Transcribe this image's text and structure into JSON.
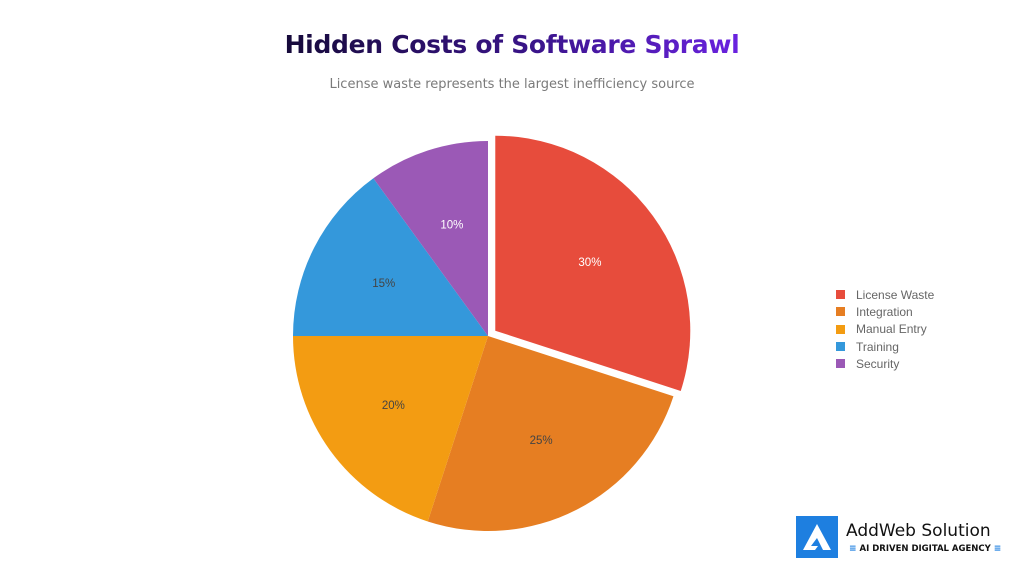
{
  "header": {
    "title": "Hidden Costs of Software Sprawl",
    "subtitle": "License waste represents the largest inefficiency source"
  },
  "chart_data": {
    "type": "pie",
    "title": "Hidden Costs of Software Sprawl",
    "subtitle": "License waste represents the largest inefficiency source",
    "categories": [
      "License Waste",
      "Integration",
      "Manual Entry",
      "Training",
      "Security"
    ],
    "values": [
      30,
      25,
      20,
      15,
      10
    ],
    "unit": "%",
    "colors": [
      "#e74c3c",
      "#e67e22",
      "#f39c12",
      "#3498db",
      "#9b59b6"
    ],
    "exploded": [
      "License Waste"
    ],
    "legend_position": "right",
    "data_labels": [
      "30%",
      "25%",
      "20%",
      "15%",
      "10%"
    ]
  },
  "legend": {
    "items": [
      {
        "label": "License Waste",
        "color": "#e74c3c"
      },
      {
        "label": "Integration",
        "color": "#e67e22"
      },
      {
        "label": "Manual Entry",
        "color": "#f39c12"
      },
      {
        "label": "Training",
        "color": "#3498db"
      },
      {
        "label": "Security",
        "color": "#9b59b6"
      }
    ]
  },
  "brand": {
    "name": "AddWeb Solution",
    "tagline": "AI DRIVEN DIGITAL AGENCY",
    "color": "#1e7fe0"
  }
}
